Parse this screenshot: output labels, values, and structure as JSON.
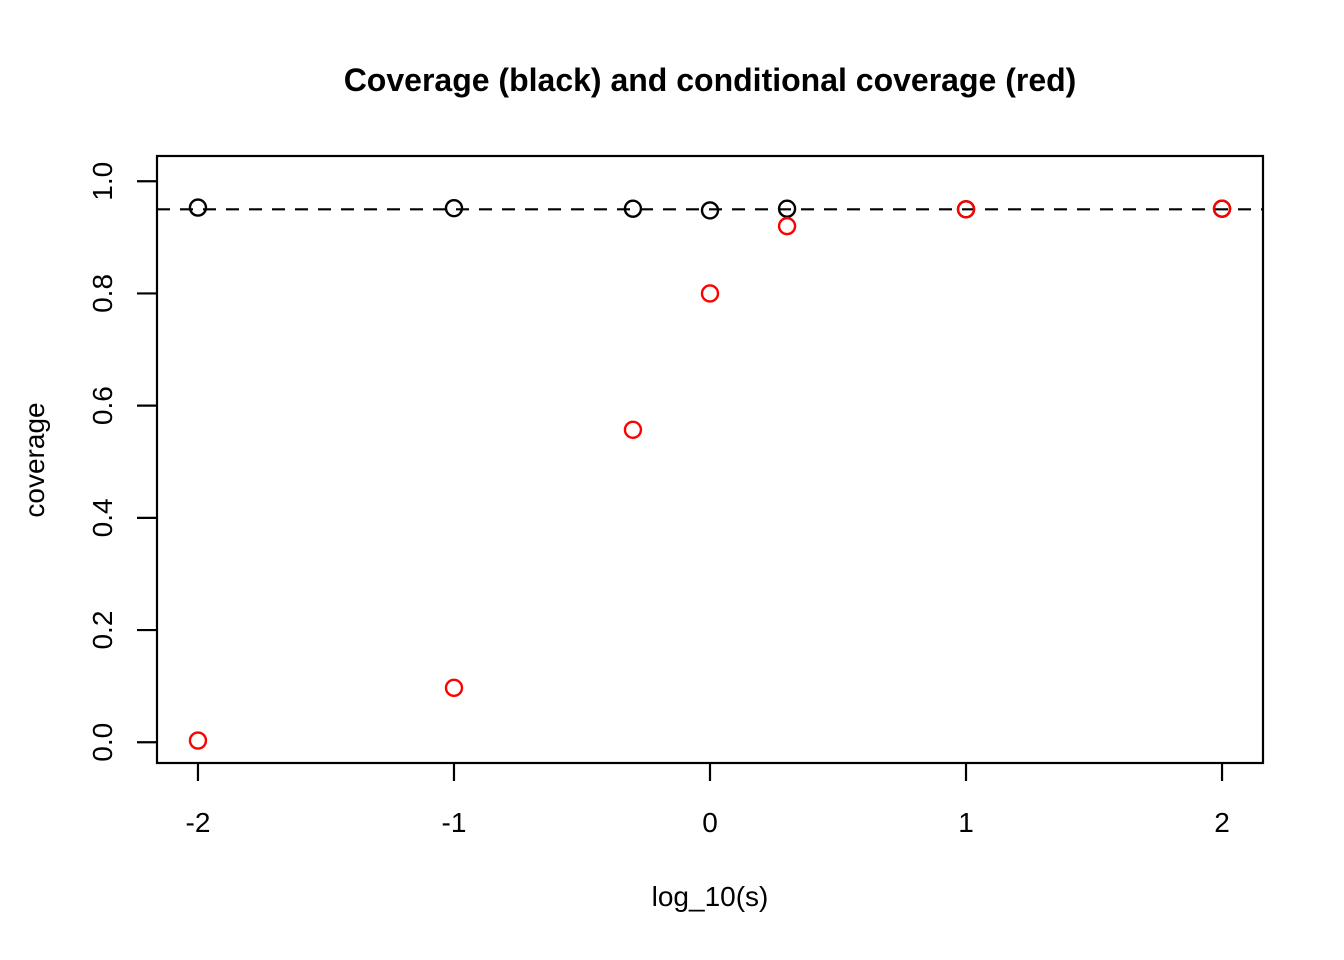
{
  "page": {
    "background_color": "#FFFFFF",
    "foreground_color": "#000000",
    "accent_color": "#FF0000"
  },
  "chart_data": {
    "type": "scatter",
    "title": "Coverage (black) and conditional coverage (red)",
    "xlabel": "log_10(s)",
    "ylabel": "coverage",
    "xlim": [
      -2.16,
      2.16
    ],
    "ylim": [
      -0.037,
      1.045
    ],
    "grid": false,
    "legend_position": "none",
    "x_ticks": {
      "values": [
        -2,
        -1,
        0,
        1,
        2
      ],
      "labels": [
        "-2",
        "-1",
        "0",
        "1",
        "2"
      ]
    },
    "y_ticks": {
      "values": [
        0.0,
        0.2,
        0.4,
        0.6,
        0.8,
        1.0
      ],
      "labels": [
        "0.0",
        "0.2",
        "0.4",
        "0.6",
        "0.8",
        "1.0"
      ]
    },
    "reference_line": {
      "y": 0.95,
      "style": "dashed",
      "color": "#000000"
    },
    "series": [
      {
        "name": "coverage",
        "color": "#000000",
        "marker": "open-circle",
        "x": [
          -2,
          -1,
          -0.301,
          0,
          0.301,
          1,
          2
        ],
        "y": [
          0.953,
          0.952,
          0.951,
          0.948,
          0.951,
          0.95,
          0.951
        ]
      },
      {
        "name": "conditional coverage",
        "color": "#FF0000",
        "marker": "open-circle",
        "x": [
          -2,
          -1,
          -0.301,
          0,
          0.301,
          1,
          2
        ],
        "y": [
          0.003,
          0.097,
          0.557,
          0.8,
          0.92,
          0.95,
          0.951
        ]
      }
    ]
  }
}
